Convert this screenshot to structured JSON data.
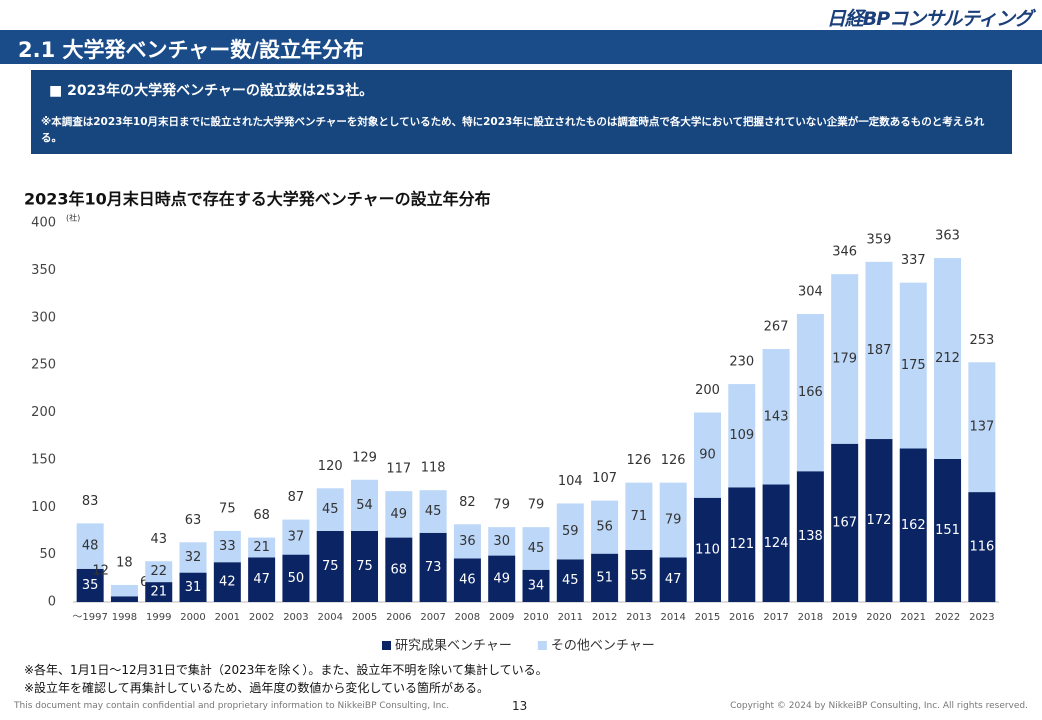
{
  "header": {
    "logo": "日経BPコンサルティング",
    "title": "2.1 大学発ベンチャー数/設立年分布"
  },
  "summary": {
    "headline": "■ 2023年の大学発ベンチャーの設立数は253社。",
    "note": "※本調査は2023年10月末日までに設立された大学発ベンチャーを対象としているため、特に2023年に設立されたものは調査時点で各大学において把握されていない企業が一定数あるものと考えられる。"
  },
  "chart_data": {
    "type": "stacked_bar",
    "title": "2023年10月末日時点で存在する大学発ベンチャーの設立年分布",
    "y_unit": "(社)",
    "categories": [
      "～1997",
      "1998",
      "1999",
      "2000",
      "2001",
      "2002",
      "2003",
      "2004",
      "2005",
      "2006",
      "2007",
      "2008",
      "2009",
      "2010",
      "2011",
      "2012",
      "2013",
      "2014",
      "2015",
      "2016",
      "2017",
      "2018",
      "2019",
      "2020",
      "2021",
      "2022",
      "2023"
    ],
    "series": [
      {
        "name": "研究成果ベンチャー",
        "color": "#0b2463",
        "values": [
          35,
          6,
          21,
          31,
          42,
          47,
          50,
          75,
          75,
          68,
          73,
          46,
          49,
          34,
          45,
          51,
          55,
          47,
          110,
          121,
          124,
          138,
          167,
          172,
          162,
          151,
          116
        ]
      },
      {
        "name": "その他ベンチャー",
        "color": "#bcd7f7",
        "values": [
          48,
          12,
          22,
          32,
          33,
          21,
          37,
          45,
          54,
          49,
          45,
          36,
          30,
          45,
          59,
          56,
          71,
          79,
          90,
          109,
          143,
          166,
          179,
          187,
          175,
          212,
          137
        ]
      }
    ],
    "totals": [
      83,
      18,
      43,
      63,
      75,
      68,
      87,
      120,
      129,
      117,
      118,
      82,
      79,
      79,
      104,
      107,
      126,
      126,
      200,
      230,
      267,
      304,
      346,
      359,
      337,
      363,
      253
    ],
    "ylim": [
      0,
      400
    ],
    "yticks": [
      0,
      50,
      100,
      150,
      200,
      250,
      300,
      350,
      400
    ],
    "legend": "bottom"
  },
  "footnotes": [
    "※各年、1月1日～12月31日で集計（2023年を除く）。また、設立年不明を除いて集計している。",
    "※設立年を確認して再集計しているため、過年度の数値から変化している箇所がある。"
  ],
  "footer": {
    "confidential": "This document may contain confidential and proprietary information to NikkeiBP Consulting, Inc.",
    "page": "13",
    "copyright": "Copyright © 2024 by NikkeiBP Consulting, Inc. All rights reserved."
  }
}
